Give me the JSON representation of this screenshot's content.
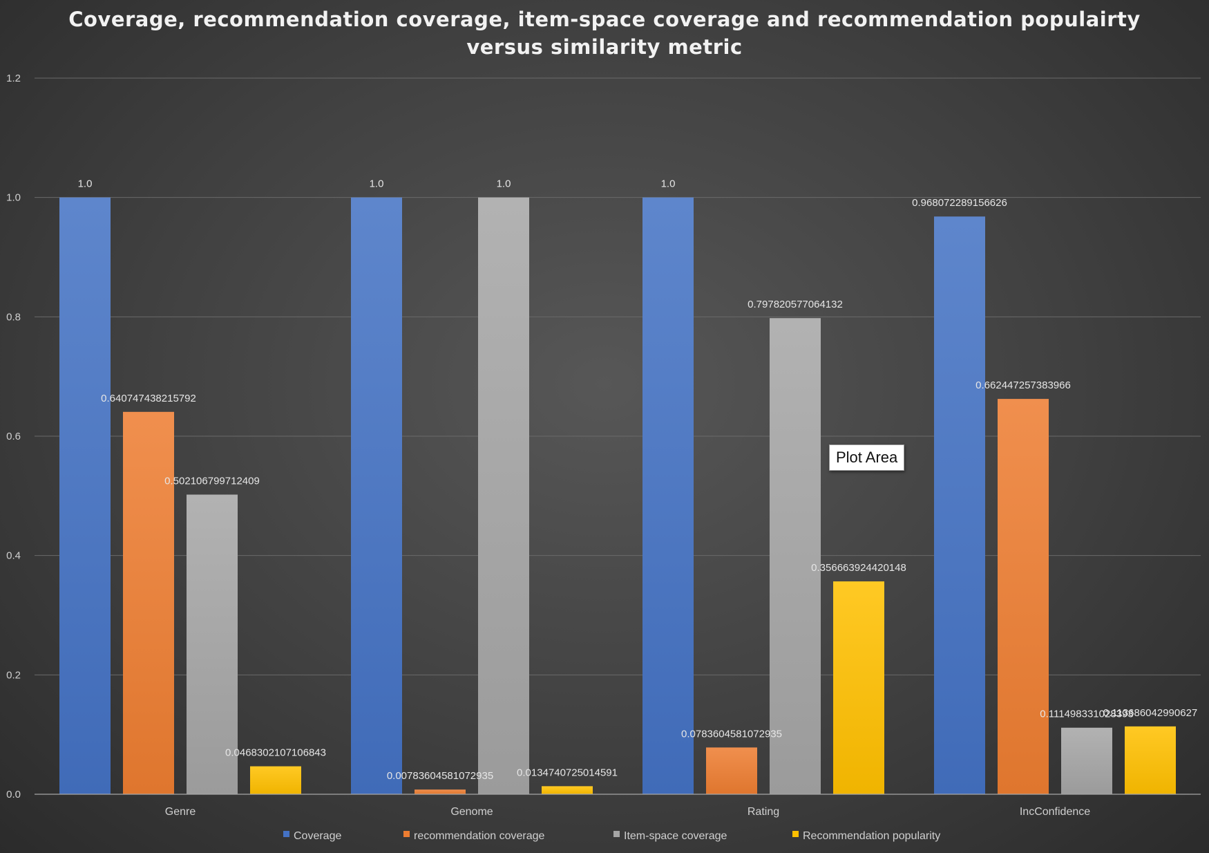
{
  "chart_data": {
    "type": "bar",
    "title_lines": [
      "Coverage, recommendation coverage, item-space coverage and recommendation populairty",
      "versus similarity metric"
    ],
    "categories": [
      "Genre",
      "Genome",
      "Rating",
      "IncConfidence"
    ],
    "ylim": [
      0,
      1.2
    ],
    "yticks": [
      0.0,
      0.2,
      0.4,
      0.6,
      0.8,
      1.0,
      1.2
    ],
    "ytick_labels": [
      "0.0",
      "0.2",
      "0.4",
      "0.6",
      "0.8",
      "1.0",
      "1.2"
    ],
    "grid": true,
    "legend_position": "bottom",
    "series": [
      {
        "name": "Coverage",
        "color": "#4472c4",
        "values": [
          1.0,
          1.0,
          1.0,
          0.968072289156626
        ],
        "labels": [
          "1.0",
          "1.0",
          "1.0",
          "0.968072289156626"
        ]
      },
      {
        "name": "recommendation coverage",
        "color": "#ed7d31",
        "values": [
          0.640747438215792,
          0.00783604581072935,
          0.0783604581072935,
          0.662447257383966
        ],
        "labels": [
          "0.640747438215792",
          "0.00783604581072935",
          "0.0783604581072935",
          "0.662447257383966"
        ]
      },
      {
        "name": "Item-space coverage",
        "color": "#a5a5a5",
        "values": [
          0.502106799712409,
          1.0,
          0.797820577064132,
          0.111498331028393
        ],
        "labels": [
          "0.502106799712409",
          "1.0",
          "0.797820577064132",
          "0.111498331028393"
        ]
      },
      {
        "name": "Recommendation popularity",
        "color": "#ffc000",
        "values": [
          0.0468302107106843,
          0.0134740725014591,
          0.356663924420148,
          0.113686042990627
        ],
        "labels": [
          "0.0468302107106843",
          "0.0134740725014591",
          "0.356663924420148",
          "0.113686042990627"
        ]
      }
    ]
  },
  "tooltip": {
    "text": "Plot Area"
  }
}
